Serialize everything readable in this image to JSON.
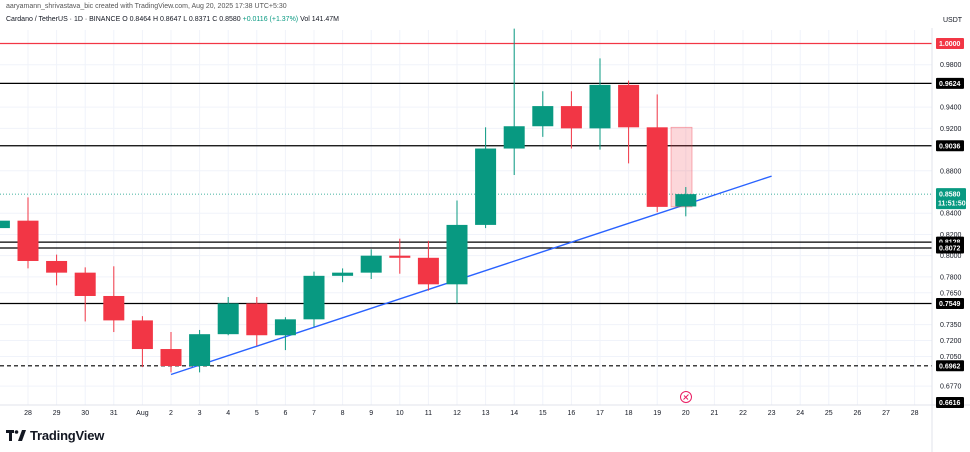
{
  "header": {
    "credit": "aaryamann_shrivastava_bic created with TradingView.com, Aug 20, 2025 17:38 UTC+5:30",
    "symbol": "Cardano / TetherUS · 1D · BINANCE",
    "ohlc": "O 0.8464  H 0.8647  L 0.8371  C 0.8580",
    "change": "+0.0116 (+1.37%)",
    "volume": "Vol 141.47M",
    "currency": "USDT"
  },
  "logo": {
    "text": "TradingView",
    "icon": "tradingview-logo-icon"
  },
  "colors": {
    "up": "#089981",
    "down": "#f23645",
    "trendline": "#2962ff",
    "level_red": "#f23645",
    "level_black": "#000000",
    "grid": "#f0f3fa"
  },
  "chart_data": {
    "type": "candlestick",
    "x_ticks": [
      "28",
      "29",
      "30",
      "31",
      "Aug",
      "2",
      "3",
      "4",
      "5",
      "6",
      "7",
      "8",
      "9",
      "10",
      "11",
      "12",
      "13",
      "14",
      "15",
      "16",
      "17",
      "18",
      "19",
      "20",
      "21",
      "22",
      "23",
      "24",
      "25",
      "26",
      "27",
      "28"
    ],
    "y_ticks": [
      "0.9800",
      "0.9400",
      "0.9200",
      "0.8800",
      "0.8400",
      "0.8200",
      "0.8000",
      "0.7800",
      "0.7650",
      "0.7350",
      "0.7200",
      "0.7050",
      "0.6770"
    ],
    "ylim": [
      0.6616,
      1.02
    ],
    "candles": [
      {
        "date": "Jul 27",
        "open": 0.826,
        "high": 0.84,
        "low": 0.823,
        "close": 0.833
      },
      {
        "date": "Jul 28",
        "open": 0.833,
        "high": 0.855,
        "low": 0.788,
        "close": 0.795
      },
      {
        "date": "Jul 29",
        "open": 0.795,
        "high": 0.801,
        "low": 0.772,
        "close": 0.784
      },
      {
        "date": "Jul 30",
        "open": 0.784,
        "high": 0.789,
        "low": 0.738,
        "close": 0.762
      },
      {
        "date": "Jul 31",
        "open": 0.762,
        "high": 0.79,
        "low": 0.728,
        "close": 0.739
      },
      {
        "date": "Aug 1",
        "open": 0.739,
        "high": 0.743,
        "low": 0.695,
        "close": 0.712
      },
      {
        "date": "Aug 2",
        "open": 0.712,
        "high": 0.728,
        "low": 0.69,
        "close": 0.696
      },
      {
        "date": "Aug 3",
        "open": 0.696,
        "high": 0.73,
        "low": 0.69,
        "close": 0.726
      },
      {
        "date": "Aug 4",
        "open": 0.726,
        "high": 0.761,
        "low": 0.725,
        "close": 0.755
      },
      {
        "date": "Aug 5",
        "open": 0.755,
        "high": 0.761,
        "low": 0.715,
        "close": 0.725
      },
      {
        "date": "Aug 6",
        "open": 0.725,
        "high": 0.742,
        "low": 0.711,
        "close": 0.74
      },
      {
        "date": "Aug 7",
        "open": 0.74,
        "high": 0.785,
        "low": 0.733,
        "close": 0.781
      },
      {
        "date": "Aug 8",
        "open": 0.781,
        "high": 0.788,
        "low": 0.775,
        "close": 0.784
      },
      {
        "date": "Aug 9",
        "open": 0.784,
        "high": 0.806,
        "low": 0.778,
        "close": 0.8
      },
      {
        "date": "Aug 10",
        "open": 0.8,
        "high": 0.816,
        "low": 0.783,
        "close": 0.798
      },
      {
        "date": "Aug 11",
        "open": 0.798,
        "high": 0.814,
        "low": 0.767,
        "close": 0.773
      },
      {
        "date": "Aug 12",
        "open": 0.773,
        "high": 0.852,
        "low": 0.755,
        "close": 0.829
      },
      {
        "date": "Aug 13",
        "open": 0.829,
        "high": 0.921,
        "low": 0.826,
        "close": 0.901
      },
      {
        "date": "Aug 14",
        "open": 0.901,
        "high": 1.014,
        "low": 0.876,
        "close": 0.922
      },
      {
        "date": "Aug 15",
        "open": 0.922,
        "high": 0.955,
        "low": 0.912,
        "close": 0.941
      },
      {
        "date": "Aug 16",
        "open": 0.941,
        "high": 0.955,
        "low": 0.901,
        "close": 0.92
      },
      {
        "date": "Aug 17",
        "open": 0.92,
        "high": 0.986,
        "low": 0.9,
        "close": 0.961
      },
      {
        "date": "Aug 18",
        "open": 0.961,
        "high": 0.965,
        "low": 0.887,
        "close": 0.921
      },
      {
        "date": "Aug 19",
        "open": 0.921,
        "high": 0.952,
        "low": 0.841,
        "close": 0.846
      },
      {
        "date": "Aug 20",
        "open": 0.8464,
        "high": 0.8647,
        "low": 0.8371,
        "close": 0.858
      }
    ],
    "ghost_candle": {
      "date": "Aug 19",
      "open": 0.921,
      "close": 0.846
    },
    "horizontal_levels": [
      {
        "value": 1.0,
        "label": "1.0000",
        "color": "red",
        "style": "solid"
      },
      {
        "value": 0.9624,
        "label": "0.9624",
        "color": "black",
        "style": "solid"
      },
      {
        "value": 0.9036,
        "label": "0.9036",
        "color": "black",
        "style": "solid"
      },
      {
        "value": 0.8128,
        "label": "0.8128",
        "color": "black",
        "style": "solid"
      },
      {
        "value": 0.8072,
        "label": "0.8072",
        "color": "black",
        "style": "solid"
      },
      {
        "value": 0.7549,
        "label": "0.7549",
        "color": "black",
        "style": "solid"
      },
      {
        "value": 0.6962,
        "label": "0.6962",
        "color": "black",
        "style": "dashed"
      },
      {
        "value": 0.6616,
        "label": "0.6616",
        "color": "black",
        "style": "none"
      }
    ],
    "current_price": {
      "value": 0.858,
      "label": "0.8580",
      "countdown": "11:51:50"
    },
    "trendline": {
      "start": {
        "date": "Aug 2",
        "value": 0.688
      },
      "end": {
        "date": "Aug 23",
        "value": 0.875
      }
    },
    "grid": true
  }
}
